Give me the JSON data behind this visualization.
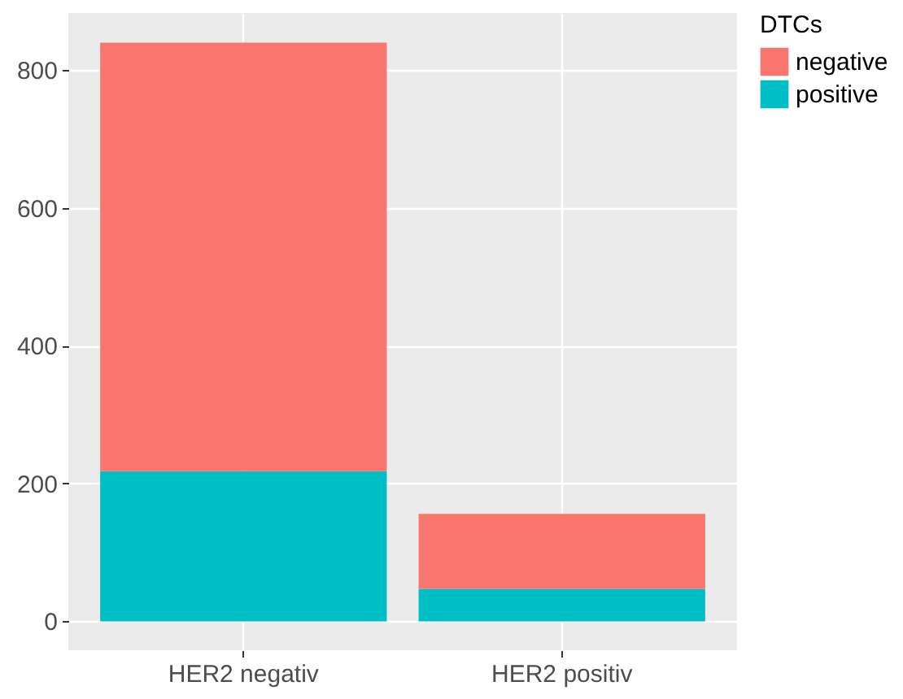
{
  "chart_data": {
    "type": "bar",
    "stacked": true,
    "legend_title": "DTCs",
    "legend": "right",
    "categories": [
      "HER2 negativ",
      "HER2 positiv"
    ],
    "series": [
      {
        "name": "positive",
        "color": "#00bfc4",
        "values": [
          218,
          47
        ]
      },
      {
        "name": "negative",
        "color": "#f8766d",
        "values": [
          622,
          109
        ]
      }
    ],
    "ylim": [
      -42,
      883
    ],
    "yticks": [
      0,
      200,
      400,
      600,
      800
    ],
    "grid": true
  }
}
